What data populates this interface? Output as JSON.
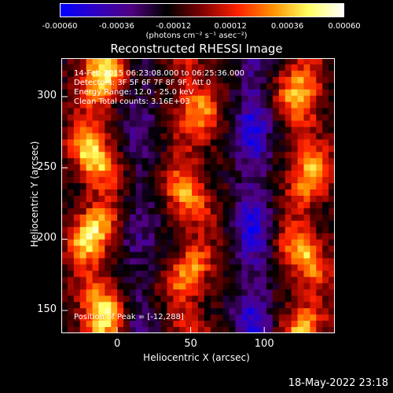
{
  "chart_data": {
    "type": "heatmap",
    "title": "Reconstructed RHESSI Image",
    "xlabel": "Heliocentric X (arcsec)",
    "ylabel": "Heliocentric Y (arcsec)",
    "xlim": [
      -38,
      148
    ],
    "ylim": [
      134,
      327
    ],
    "x_ticks": [
      0,
      50,
      100
    ],
    "y_ticks": [
      150,
      200,
      250,
      300
    ],
    "colorbar": {
      "range": [
        -0.0006,
        0.0006
      ],
      "tick_labels": [
        "-0.00060",
        "-0.00036",
        "-0.00012",
        "0.00012",
        "0.00036",
        "0.00060"
      ],
      "units_label": "(photons cm⁻² s⁻¹ asec⁻²)",
      "colors": [
        "#0000ff",
        "#3000c0",
        "#500080",
        "#000000",
        "#800000",
        "#ff2000",
        "#ff9000",
        "#ffff60",
        "#ffffff"
      ]
    },
    "bright_columns": [
      {
        "x_center": -15,
        "strength": 0.00055
      },
      {
        "x_center": 50,
        "strength": 0.0004
      },
      {
        "x_center": 128,
        "strength": 0.00045
      }
    ],
    "dark_columns": [
      {
        "x_center": 92,
        "strength": -0.0004
      },
      {
        "x_center": 15,
        "strength": -0.0002
      }
    ],
    "annotations": {
      "time": "14-Feb-2015 06:23:08.000 to 06:25:36.000",
      "detectors": "Detectors: 3F 5F 6F 7F 8F 9F, Att 0",
      "energy": "Energy Range: 12.0 - 25.0 keV",
      "clean": "Clean    Total counts: 3.16E+03",
      "peak": "Position of Peak = [-12,288]"
    },
    "footer_date": "18-May-2022 23:18"
  }
}
